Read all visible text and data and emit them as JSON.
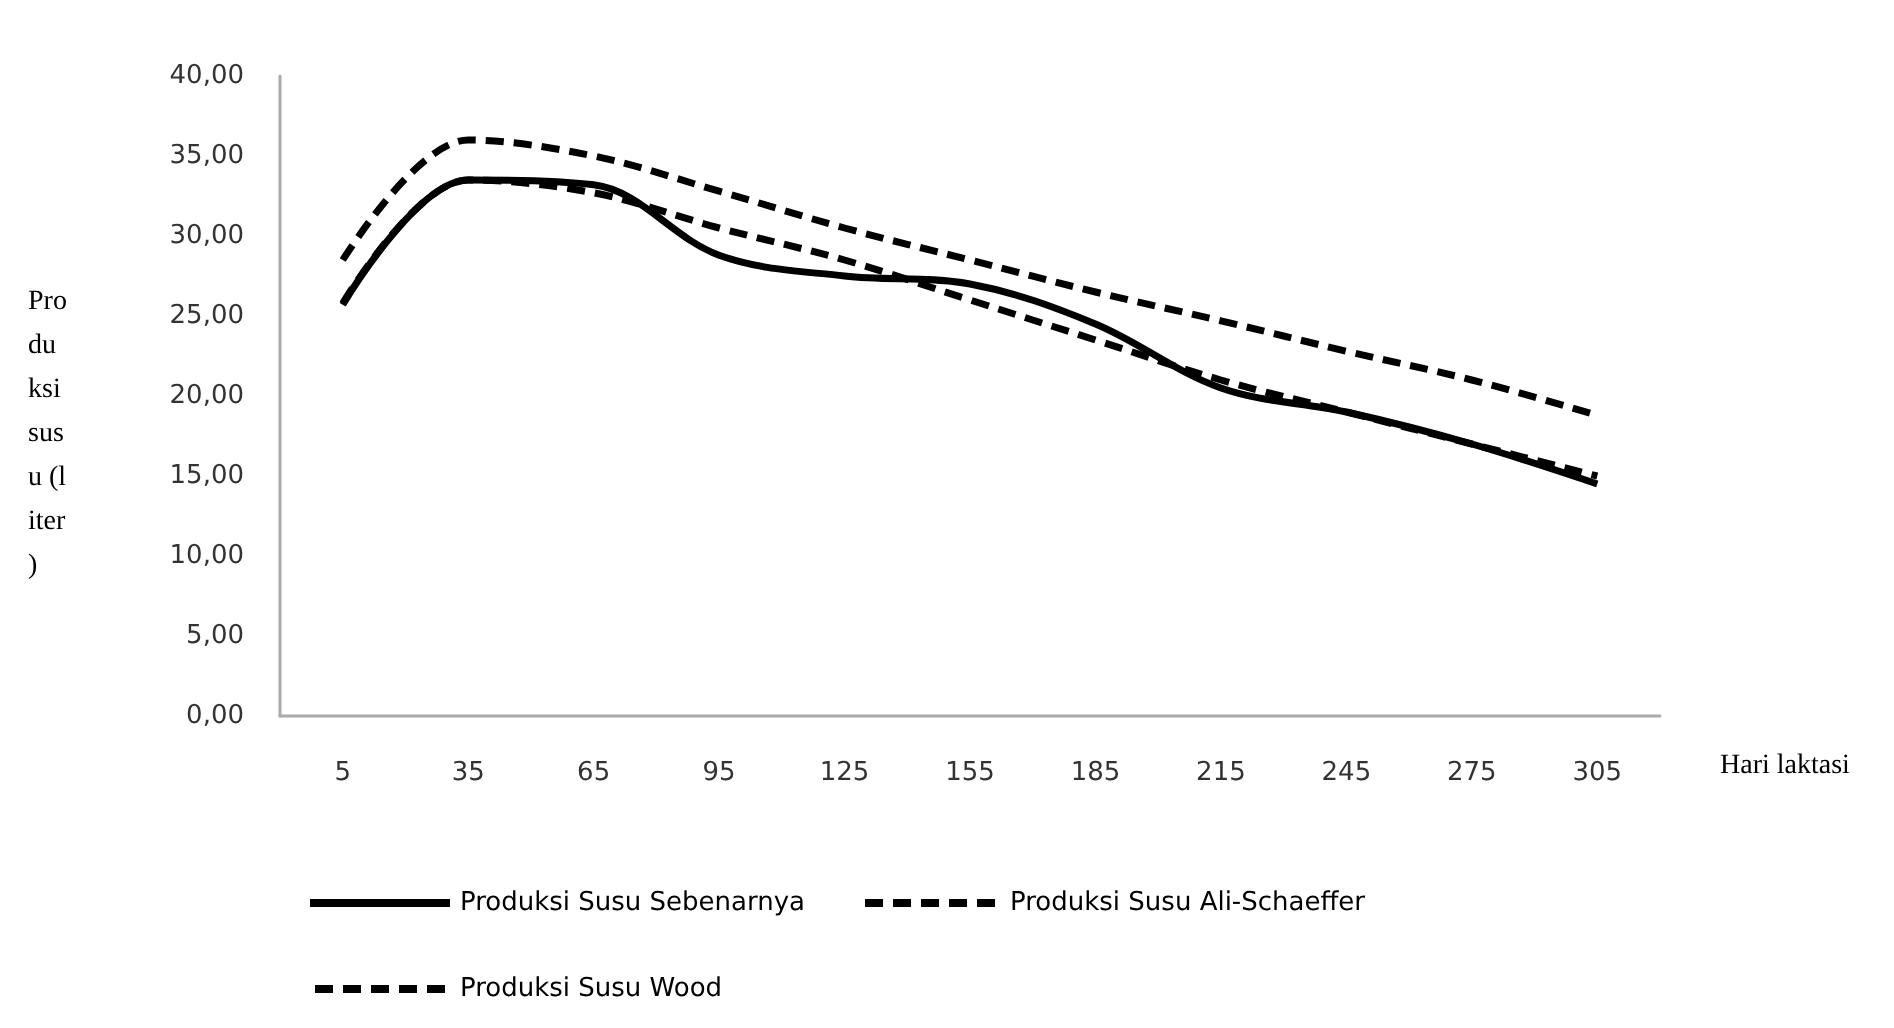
{
  "chart_data": {
    "type": "line",
    "xlabel": "Hari laktasi",
    "ylabel": "Produksi susu (liter)",
    "categories": [
      "5",
      "35",
      "65",
      "95",
      "125",
      "155",
      "185",
      "215",
      "245",
      "275",
      "305"
    ],
    "series": [
      {
        "name": "Produksi Susu Sebenarnya",
        "color": "#000000",
        "line_style": "solid",
        "values": [
          25.7,
          33.5,
          33.2,
          28.8,
          27.5,
          27,
          24.5,
          20.5,
          19,
          17,
          14.5
        ]
      },
      {
        "name": "Produksi Susu Ali-Schaeffer",
        "color": "#000000",
        "line_style": "dashed",
        "values": [
          28.5,
          36,
          35,
          32.8,
          30.5,
          28.5,
          26.5,
          24.7,
          22.8,
          21,
          18.8
        ]
      },
      {
        "name": "Produksi Susu Wood",
        "color": "#000000",
        "line_style": "dashed",
        "values": [
          25.8,
          33.5,
          32.7,
          30.5,
          28.5,
          26,
          23.5,
          21,
          19,
          17,
          15
        ]
      }
    ],
    "ylim": [
      0,
      40
    ],
    "yticks": [
      {
        "value": 0,
        "label": "0,00"
      },
      {
        "value": 5,
        "label": "5,00"
      },
      {
        "value": 10,
        "label": "10,00"
      },
      {
        "value": 15,
        "label": "15,00"
      },
      {
        "value": 20,
        "label": "20,00"
      },
      {
        "value": 25,
        "label": "25,00"
      },
      {
        "value": 30,
        "label": "30,00"
      },
      {
        "value": 35,
        "label": "35,00"
      },
      {
        "value": 40,
        "label": "40,00"
      }
    ],
    "grid": false,
    "legend": "bottom",
    "marker": "none"
  }
}
